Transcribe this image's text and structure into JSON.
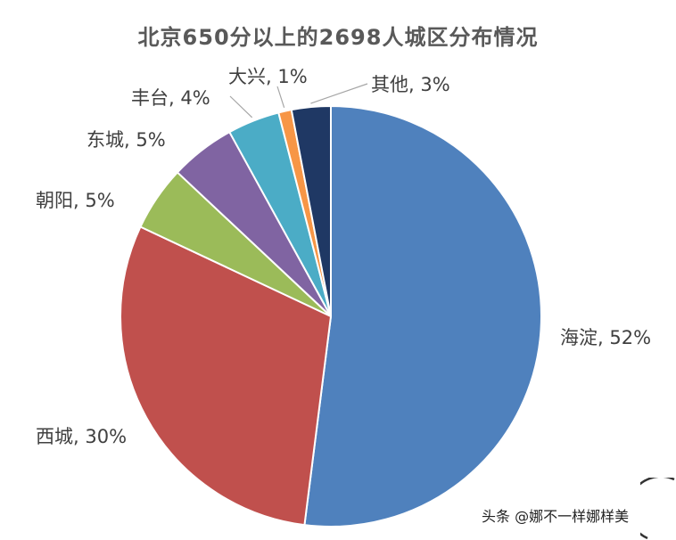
{
  "chart_data": {
    "type": "pie",
    "title": "北京650分以上的2698人城区分布情况",
    "slices": [
      {
        "label": "海淀",
        "value": 52,
        "display": "海淀, 52%",
        "color": "#4f81bd"
      },
      {
        "label": "西城",
        "value": 30,
        "display": "西城, 30%",
        "color": "#c0504d"
      },
      {
        "label": "朝阳",
        "value": 5,
        "display": "朝阳, 5%",
        "color": "#9bbb59"
      },
      {
        "label": "东城",
        "value": 5,
        "display": "东城, 5%",
        "color": "#8064a2"
      },
      {
        "label": "丰台",
        "value": 4,
        "display": "丰台, 4%",
        "color": "#4bacc6"
      },
      {
        "label": "大兴",
        "value": 1,
        "display": "大兴, 1%",
        "color": "#f79646"
      },
      {
        "label": "其他",
        "value": 3,
        "display": "其他, 3%",
        "color": "#1f3864"
      }
    ],
    "start": "12 o'clock",
    "direction": "clockwise",
    "legend": "none"
  },
  "watermark": "头条 @娜不一样娜样美",
  "colors": {
    "title": "#595959",
    "label": "#404040",
    "leader_line": "#a6a6a6",
    "slice_border": "#ffffff"
  }
}
